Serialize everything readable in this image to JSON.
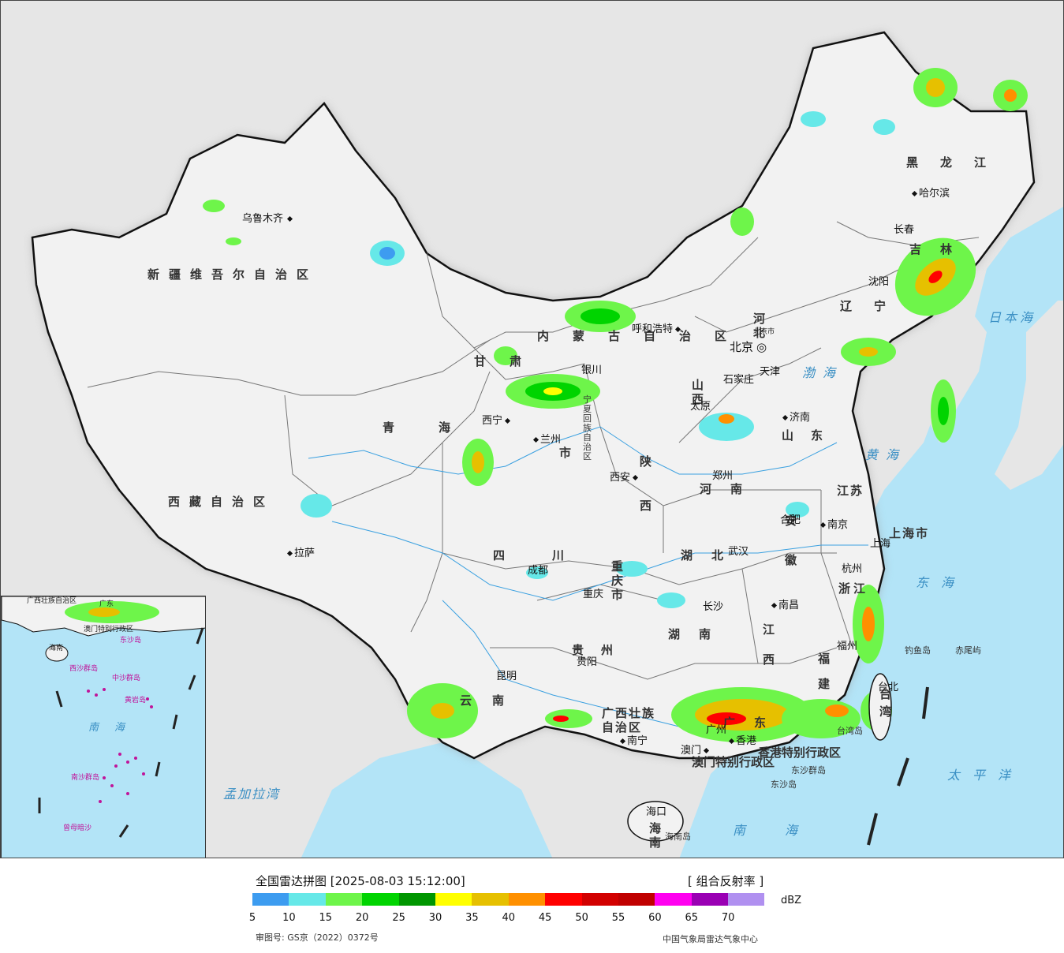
{
  "map": {
    "provinces": [
      {
        "id": "xinjiang",
        "text": "新疆维吾尔自治区"
      },
      {
        "id": "xizang",
        "text": "西藏自治区"
      },
      {
        "id": "qinghai",
        "text": "青海"
      },
      {
        "id": "gansu",
        "text": "甘肃"
      },
      {
        "id": "neimenggu",
        "text": "内蒙古自治区"
      },
      {
        "id": "heilongjiang",
        "text": "黑龙江"
      },
      {
        "id": "jilin",
        "text": "吉林"
      },
      {
        "id": "liaoning",
        "text": "辽宁"
      },
      {
        "id": "hebei",
        "text": "河北"
      },
      {
        "id": "shanxi",
        "text": "山西"
      },
      {
        "id": "shandong",
        "text": "山东"
      },
      {
        "id": "henan",
        "text": "河南"
      },
      {
        "id": "shaanxi",
        "text": "陕西"
      },
      {
        "id": "sichuan",
        "text": "四川"
      },
      {
        "id": "chongqing",
        "text": "重庆市"
      },
      {
        "id": "hubei",
        "text": "湖北"
      },
      {
        "id": "hunan",
        "text": "湖南"
      },
      {
        "id": "jiangxi",
        "text": "江西"
      },
      {
        "id": "anhui",
        "text": "安徽"
      },
      {
        "id": "jiangsu",
        "text": "江苏"
      },
      {
        "id": "zhejiang",
        "text": "浙江"
      },
      {
        "id": "fujian",
        "text": "福建"
      },
      {
        "id": "guizhou",
        "text": "贵州"
      },
      {
        "id": "yunnan",
        "text": "云南"
      },
      {
        "id": "guangxi",
        "text": "广西壮族自治区"
      },
      {
        "id": "guangdong",
        "text": "广东"
      },
      {
        "id": "hainan",
        "text": "海南"
      },
      {
        "id": "taiwan",
        "text": "台湾"
      },
      {
        "id": "ningxia",
        "text": "宁夏回族自治区"
      },
      {
        "id": "lanzhou_shi",
        "text": "市"
      },
      {
        "id": "shanghai",
        "text": "上海市"
      },
      {
        "id": "aomen",
        "text": "澳门特别行政区"
      },
      {
        "id": "xianggang",
        "text": "香港特别行政区"
      }
    ],
    "cities": [
      {
        "id": "wulumuqi",
        "text": "乌鲁木齐"
      },
      {
        "id": "lasa",
        "text": "拉萨"
      },
      {
        "id": "xining",
        "text": "西宁"
      },
      {
        "id": "lanzhou",
        "text": "兰州"
      },
      {
        "id": "yinchuan",
        "text": "银川"
      },
      {
        "id": "huhehaote",
        "text": "呼和浩特"
      },
      {
        "id": "haerbin",
        "text": "哈尔滨"
      },
      {
        "id": "changchun",
        "text": "长春"
      },
      {
        "id": "shenyang",
        "text": "沈阳"
      },
      {
        "id": "beijing",
        "text": "北京"
      },
      {
        "id": "tianjin",
        "text": "天津"
      },
      {
        "id": "shijiazhuang",
        "text": "石家庄"
      },
      {
        "id": "taiyuan",
        "text": "太原"
      },
      {
        "id": "jinan",
        "text": "济南"
      },
      {
        "id": "zhengzhou",
        "text": "郑州"
      },
      {
        "id": "xian",
        "text": "西安"
      },
      {
        "id": "chengdu",
        "text": "成都"
      },
      {
        "id": "chongqing_c",
        "text": "重庆"
      },
      {
        "id": "wuhan",
        "text": "武汉"
      },
      {
        "id": "hefei",
        "text": "合肥"
      },
      {
        "id": "nanjing",
        "text": "南京"
      },
      {
        "id": "shanghai_c",
        "text": "上海"
      },
      {
        "id": "hangzhou",
        "text": "杭州"
      },
      {
        "id": "nanchang",
        "text": "南昌"
      },
      {
        "id": "changsha",
        "text": "长沙"
      },
      {
        "id": "fuzhou",
        "text": "福州"
      },
      {
        "id": "guiyang",
        "text": "贵阳"
      },
      {
        "id": "kunming",
        "text": "昆明"
      },
      {
        "id": "nanning",
        "text": "南宁"
      },
      {
        "id": "guangzhou",
        "text": "广州"
      },
      {
        "id": "aomen_c",
        "text": "澳门"
      },
      {
        "id": "xianggang_c",
        "text": "香港"
      },
      {
        "id": "haikou",
        "text": "海口"
      },
      {
        "id": "taibei",
        "text": "台北"
      }
    ],
    "seas": [
      {
        "id": "bohai",
        "text": "渤海"
      },
      {
        "id": "huanghai",
        "text": "黄海"
      },
      {
        "id": "donghai",
        "text": "东海"
      },
      {
        "id": "nanhai",
        "text": "南海"
      },
      {
        "id": "taipingyang",
        "text": "太平洋"
      },
      {
        "id": "ribenhai",
        "text": "日本海"
      },
      {
        "id": "mengjialawan",
        "text": "孟加拉湾"
      }
    ],
    "islands": [
      {
        "id": "diaoyudao",
        "text": "钓鱼岛"
      },
      {
        "id": "chiweiyu",
        "text": "赤尾屿"
      },
      {
        "id": "dongshaqundao",
        "text": "东沙群岛"
      },
      {
        "id": "dongshadao",
        "text": "东沙岛"
      },
      {
        "id": "hainandao",
        "text": "海南岛"
      },
      {
        "id": "taiwandao",
        "text": "台湾岛"
      },
      {
        "id": "beijing_small",
        "text": "北京市"
      }
    ],
    "inset": {
      "nanhai": "南海",
      "labels": [
        "广西壮族自治区",
        "广东",
        "澳门特别行政区",
        "东沙岛",
        "海南",
        "西沙群岛",
        "中沙群岛",
        "黄岩岛",
        "南沙群岛",
        "曾母暗沙"
      ]
    }
  },
  "legend": {
    "title": "全国雷达拼图 [2025-08-03 15:12:00]",
    "product": "[ 组合反射率 ]",
    "unit": "dBZ",
    "colors": [
      "#3d9cf0",
      "#66e8e8",
      "#6ef54a",
      "#00d400",
      "#009600",
      "#ffff00",
      "#e6c000",
      "#ff9000",
      "#ff0000",
      "#d20000",
      "#c00000",
      "#ff00f0",
      "#9a00b4",
      "#b090f0"
    ],
    "ticks": [
      "5",
      "10",
      "15",
      "20",
      "25",
      "30",
      "35",
      "40",
      "45",
      "50",
      "55",
      "60",
      "65",
      "70"
    ],
    "review": "审图号: GS京（2022）0372号",
    "org": "中国气象局雷达气象中心"
  }
}
